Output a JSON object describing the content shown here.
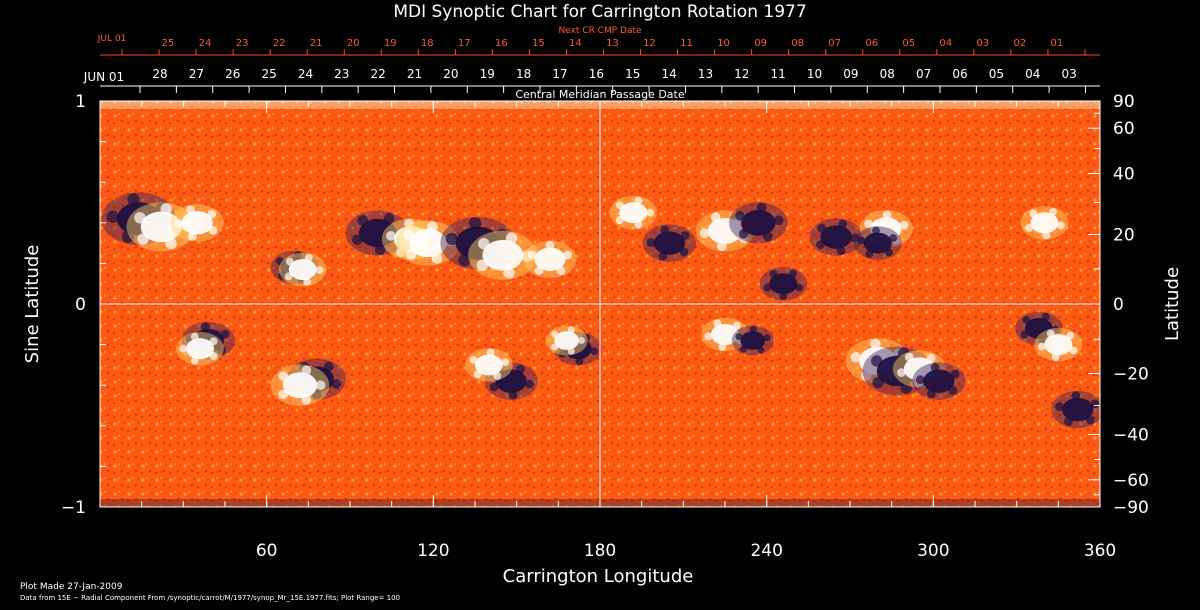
{
  "chart_data": {
    "type": "heatmap",
    "title": "MDI Synoptic Chart for Carrington Rotation 1977",
    "xlabel": "Carrington Longitude",
    "ylabel_left": "Sine Latitude",
    "ylabel_right": "Latitude",
    "xlim": [
      0,
      360
    ],
    "ylim": [
      -1,
      1
    ],
    "x_ticks": [
      "60",
      "120",
      "180",
      "240",
      "300",
      "360"
    ],
    "x_tick_values": [
      60,
      120,
      180,
      240,
      300,
      360
    ],
    "y_left_ticks": [
      {
        "label": "1",
        "value": 1
      },
      {
        "label": "0",
        "value": 0
      },
      {
        "label": "−1",
        "value": -1
      }
    ],
    "y_right_ticks": [
      {
        "label": "90",
        "value": 90
      },
      {
        "label": "60",
        "value": 60
      },
      {
        "label": "40",
        "value": 40
      },
      {
        "label": "20",
        "value": 20
      },
      {
        "label": "0",
        "value": 0
      },
      {
        "label": "−20",
        "value": -20
      },
      {
        "label": "−40",
        "value": -40
      },
      {
        "label": "−60",
        "value": -60
      },
      {
        "label": "−90",
        "value": -90
      }
    ],
    "top_axis_label": "Central Meridian Passage Date",
    "top_axis_start": "JUN 01",
    "top_axis_dates": [
      "28",
      "27",
      "26",
      "25",
      "24",
      "23",
      "22",
      "21",
      "20",
      "19",
      "18",
      "17",
      "16",
      "15",
      "14",
      "13",
      "12",
      "11",
      "10",
      "09",
      "08",
      "07",
      "06",
      "05",
      "04",
      "03"
    ],
    "next_axis_label": "Next CR CMP Date",
    "next_axis_start": "JUL 01",
    "next_axis_dates": [
      "25",
      "24",
      "23",
      "22",
      "21",
      "20",
      "19",
      "18",
      "17",
      "16",
      "15",
      "14",
      "13",
      "12",
      "11",
      "10",
      "09",
      "08",
      "07",
      "06",
      "05",
      "04",
      "03",
      "02",
      "01"
    ],
    "footer_line1": "Plot Made 27-Jan-2009",
    "footer_line2": "Data from 15E − Radial Component From /synoptic/carrot/M/1977/synop_Mr_15E.1977.fits; Plot Range= 100",
    "background_color": "#ff5a14",
    "positive_color": "#ffffff",
    "negative_color": "#1a1040",
    "regions": [
      {
        "lon": 14,
        "sinlat": 0.42,
        "polarity": "negative",
        "strength": 1.0
      },
      {
        "lon": 22,
        "sinlat": 0.38,
        "polarity": "positive",
        "strength": 0.9
      },
      {
        "lon": 35,
        "sinlat": 0.4,
        "polarity": "positive",
        "strength": 0.6
      },
      {
        "lon": 70,
        "sinlat": 0.18,
        "polarity": "negative",
        "strength": 0.5
      },
      {
        "lon": 73,
        "sinlat": 0.17,
        "polarity": "positive",
        "strength": 0.5
      },
      {
        "lon": 100,
        "sinlat": 0.35,
        "polarity": "negative",
        "strength": 0.8
      },
      {
        "lon": 112,
        "sinlat": 0.32,
        "polarity": "positive",
        "strength": 0.7
      },
      {
        "lon": 118,
        "sinlat": 0.3,
        "polarity": "positive",
        "strength": 0.8
      },
      {
        "lon": 136,
        "sinlat": 0.3,
        "polarity": "negative",
        "strength": 1.0
      },
      {
        "lon": 145,
        "sinlat": 0.24,
        "polarity": "positive",
        "strength": 0.9
      },
      {
        "lon": 162,
        "sinlat": 0.22,
        "polarity": "positive",
        "strength": 0.6
      },
      {
        "lon": 192,
        "sinlat": 0.45,
        "polarity": "positive",
        "strength": 0.5
      },
      {
        "lon": 205,
        "sinlat": 0.3,
        "polarity": "negative",
        "strength": 0.6
      },
      {
        "lon": 225,
        "sinlat": 0.36,
        "polarity": "positive",
        "strength": 0.7
      },
      {
        "lon": 237,
        "sinlat": 0.4,
        "polarity": "negative",
        "strength": 0.7
      },
      {
        "lon": 246,
        "sinlat": 0.1,
        "polarity": "negative",
        "strength": 0.5
      },
      {
        "lon": 265,
        "sinlat": 0.33,
        "polarity": "negative",
        "strength": 0.6
      },
      {
        "lon": 283,
        "sinlat": 0.37,
        "polarity": "positive",
        "strength": 0.6
      },
      {
        "lon": 280,
        "sinlat": 0.3,
        "polarity": "negative",
        "strength": 0.5
      },
      {
        "lon": 340,
        "sinlat": 0.4,
        "polarity": "positive",
        "strength": 0.5
      },
      {
        "lon": 39,
        "sinlat": -0.18,
        "polarity": "negative",
        "strength": 0.6
      },
      {
        "lon": 36,
        "sinlat": -0.22,
        "polarity": "positive",
        "strength": 0.5
      },
      {
        "lon": 78,
        "sinlat": -0.37,
        "polarity": "negative",
        "strength": 0.7
      },
      {
        "lon": 72,
        "sinlat": -0.4,
        "polarity": "positive",
        "strength": 0.7
      },
      {
        "lon": 148,
        "sinlat": -0.38,
        "polarity": "negative",
        "strength": 0.6
      },
      {
        "lon": 140,
        "sinlat": -0.3,
        "polarity": "positive",
        "strength": 0.5
      },
      {
        "lon": 172,
        "sinlat": -0.22,
        "polarity": "negative",
        "strength": 0.5
      },
      {
        "lon": 168,
        "sinlat": -0.18,
        "polarity": "positive",
        "strength": 0.4
      },
      {
        "lon": 225,
        "sinlat": -0.15,
        "polarity": "positive",
        "strength": 0.5
      },
      {
        "lon": 235,
        "sinlat": -0.18,
        "polarity": "negative",
        "strength": 0.4
      },
      {
        "lon": 280,
        "sinlat": -0.28,
        "polarity": "positive",
        "strength": 0.8
      },
      {
        "lon": 287,
        "sinlat": -0.33,
        "polarity": "negative",
        "strength": 0.9
      },
      {
        "lon": 295,
        "sinlat": -0.32,
        "polarity": "positive",
        "strength": 0.6
      },
      {
        "lon": 302,
        "sinlat": -0.38,
        "polarity": "negative",
        "strength": 0.6
      },
      {
        "lon": 338,
        "sinlat": -0.12,
        "polarity": "negative",
        "strength": 0.5
      },
      {
        "lon": 345,
        "sinlat": -0.2,
        "polarity": "positive",
        "strength": 0.5
      },
      {
        "lon": 352,
        "sinlat": -0.52,
        "polarity": "negative",
        "strength": 0.6
      }
    ]
  }
}
